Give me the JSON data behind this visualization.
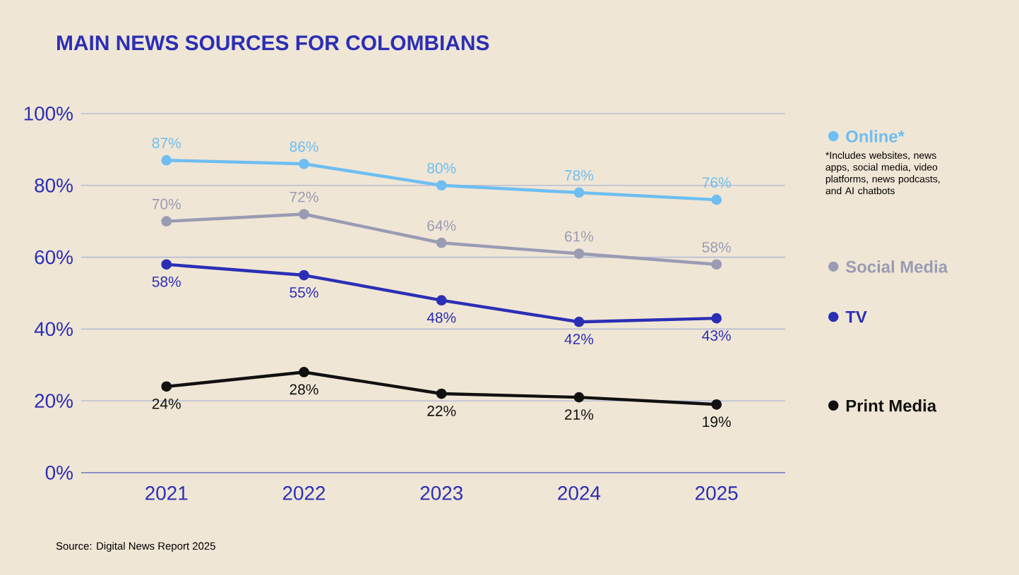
{
  "chart_data": {
    "type": "line",
    "title": "MAIN NEWS SOURCES FOR COLOMBIANS",
    "categories": [
      "2021",
      "2022",
      "2023",
      "2024",
      "2025"
    ],
    "series": [
      {
        "name": "Online*",
        "color": "#6dbef2",
        "values": [
          87,
          86,
          80,
          78,
          76
        ],
        "value_labels": [
          "87%",
          "86%",
          "80%",
          "78%",
          "76%"
        ]
      },
      {
        "name": "Social Media",
        "color": "#9a9bb4",
        "values": [
          70,
          72,
          64,
          61,
          58
        ],
        "value_labels": [
          "70%",
          "72%",
          "64%",
          "61%",
          "58%"
        ]
      },
      {
        "name": "TV",
        "color": "#2b2fb5",
        "values": [
          58,
          55,
          48,
          42,
          43
        ],
        "value_labels": [
          "58%",
          "55%",
          "48%",
          "42%",
          "43%"
        ]
      },
      {
        "name": "Print Media",
        "color": "#111111",
        "values": [
          24,
          28,
          22,
          21,
          19
        ],
        "value_labels": [
          "24%",
          "28%",
          "22%",
          "21%",
          "19%"
        ]
      }
    ],
    "ylim": [
      0,
      100
    ],
    "yticks": [
      {
        "value": 0,
        "label": "0%"
      },
      {
        "value": 20,
        "label": "20%"
      },
      {
        "value": 40,
        "label": "40%"
      },
      {
        "value": 60,
        "label": "60%"
      },
      {
        "value": 80,
        "label": "80%"
      },
      {
        "value": 100,
        "label": "100%"
      }
    ],
    "grid": "y",
    "legend": "right",
    "marker": "circle",
    "line_style": "solid",
    "annotations": [
      "*Includes websites, news apps, social media, video platforms, news podcasts, and AI chatbots",
      "Source: Digital News Report 2025"
    ]
  }
}
